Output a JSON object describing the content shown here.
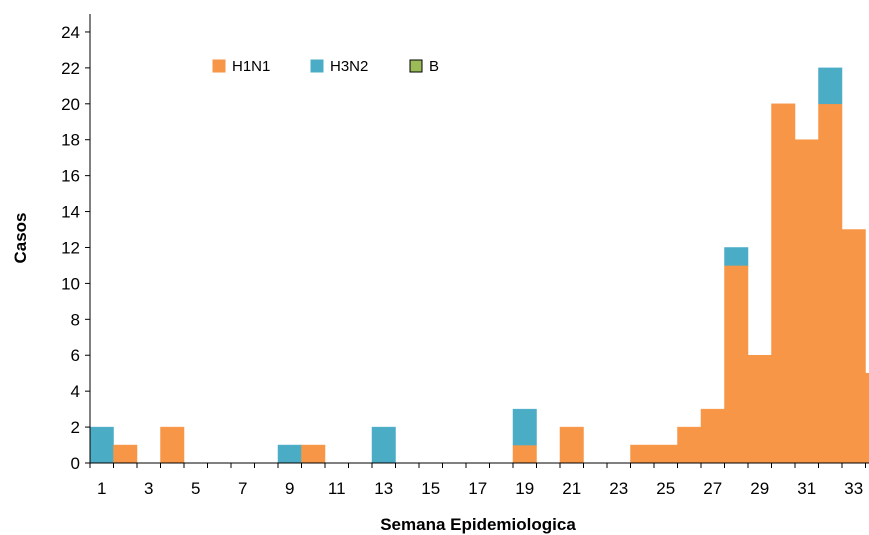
{
  "chart_data": {
    "type": "bar",
    "stacked": true,
    "title": "",
    "xlabel": "Semana Epidemiologica",
    "ylabel": "Casos",
    "x": [
      1,
      2,
      3,
      4,
      5,
      6,
      7,
      8,
      9,
      10,
      11,
      12,
      13,
      14,
      15,
      16,
      17,
      18,
      19,
      20,
      21,
      22,
      23,
      24,
      25,
      26,
      27,
      28,
      29,
      30,
      31,
      32,
      33,
      34
    ],
    "x_tick_labels": [
      "1",
      "3",
      "5",
      "7",
      "9",
      "11",
      "13",
      "15",
      "17",
      "19",
      "21",
      "23",
      "25",
      "27",
      "29",
      "31",
      "33"
    ],
    "x_tick_values": [
      1,
      3,
      5,
      7,
      9,
      11,
      13,
      15,
      17,
      19,
      21,
      23,
      25,
      27,
      29,
      31,
      33
    ],
    "y_tick_labels": [
      "0",
      "2",
      "4",
      "6",
      "8",
      "10",
      "12",
      "14",
      "16",
      "18",
      "20",
      "22",
      "24"
    ],
    "ylim": [
      0,
      25
    ],
    "grid": false,
    "legend_position": "top-left",
    "series": [
      {
        "name": "H1N1",
        "color": "#F79646",
        "values": [
          0,
          1,
          0,
          2,
          0,
          0,
          0,
          0,
          0,
          1,
          0,
          0,
          0,
          0,
          0,
          0,
          0,
          0,
          1,
          0,
          2,
          0,
          0,
          1,
          1,
          2,
          3,
          11,
          6,
          20,
          18,
          20,
          13,
          5
        ]
      },
      {
        "name": "H3N2",
        "color": "#4BACC6",
        "values": [
          2,
          0,
          0,
          0,
          0,
          0,
          0,
          0,
          1,
          0,
          0,
          0,
          2,
          0,
          0,
          0,
          0,
          0,
          2,
          0,
          0,
          0,
          0,
          0,
          0,
          0,
          0,
          1,
          0,
          0,
          0,
          2,
          0,
          0
        ]
      },
      {
        "name": "B",
        "color": "#9BBB59",
        "values": [
          0,
          0,
          0,
          0,
          0,
          0,
          0,
          0,
          0,
          0,
          0,
          0,
          0,
          0,
          0,
          0,
          0,
          0,
          0,
          0,
          0,
          0,
          0,
          0,
          0,
          0,
          0,
          0,
          0,
          0,
          0,
          0,
          0,
          0
        ]
      }
    ]
  }
}
